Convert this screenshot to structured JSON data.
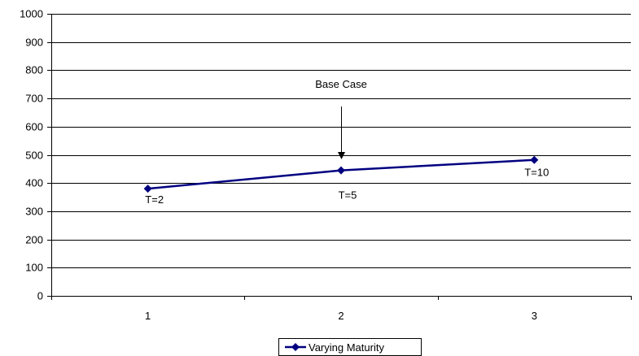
{
  "chart_data": {
    "type": "line",
    "title": "",
    "xlabel": "",
    "ylabel": "",
    "categories": [
      "1",
      "2",
      "3"
    ],
    "ylim": [
      0,
      1000
    ],
    "yticks": [
      0,
      100,
      200,
      300,
      400,
      500,
      600,
      700,
      800,
      900,
      1000
    ],
    "grid": true,
    "legend_position": "bottom",
    "series": [
      {
        "name": "Varying Maturity",
        "color": "#000080",
        "marker": "diamond",
        "values": [
          380,
          445,
          482
        ],
        "point_labels": [
          "T=2",
          "T=5",
          "T=10"
        ]
      }
    ],
    "annotations": [
      {
        "text": "Base Case",
        "category_index": 1,
        "arrow": true
      }
    ]
  }
}
